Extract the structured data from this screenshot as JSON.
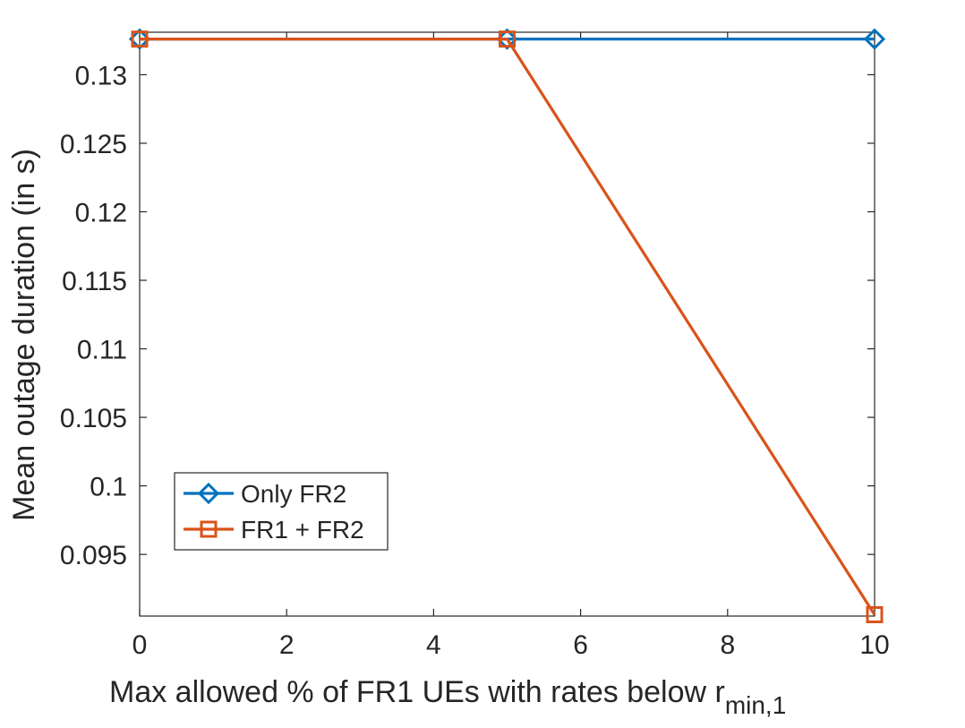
{
  "chart_data": {
    "type": "line",
    "title": "",
    "xlabel": "Max allowed % of FR1 UEs with rates below r",
    "xlabel_subscript": "min,1",
    "ylabel": "Mean outage duration (in s)",
    "x": [
      0,
      5,
      10
    ],
    "xlim": [
      0,
      10
    ],
    "ylim": [
      0.0905,
      0.1331
    ],
    "xticks": [
      0,
      2,
      4,
      6,
      8,
      10
    ],
    "xtick_labels": [
      "0",
      "2",
      "4",
      "6",
      "8",
      "10"
    ],
    "yticks": [
      0.095,
      0.1,
      0.105,
      0.11,
      0.115,
      0.12,
      0.125,
      0.13
    ],
    "ytick_labels": [
      "0.095",
      "0.1",
      "0.105",
      "0.11",
      "0.115",
      "0.12",
      "0.125",
      "0.13"
    ],
    "grid": false,
    "legend_position": "lower-left",
    "series": [
      {
        "name": "Only FR2",
        "values": [
          0.1326,
          0.1326,
          0.1326
        ],
        "color": "#0072BD",
        "marker": "diamond"
      },
      {
        "name": "FR1 + FR2",
        "values": [
          0.1326,
          0.1326,
          0.0906
        ],
        "color": "#D95319",
        "marker": "square"
      }
    ]
  }
}
